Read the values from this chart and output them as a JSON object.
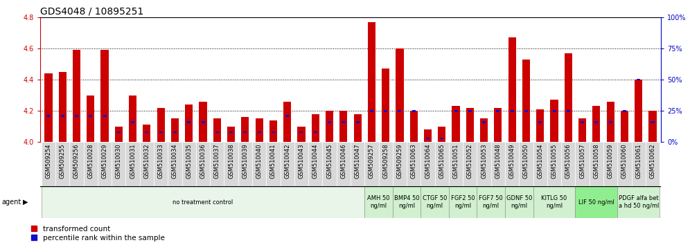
{
  "title": "GDS4048 / 10895251",
  "samples": [
    "GSM509254",
    "GSM509255",
    "GSM509256",
    "GSM510028",
    "GSM510029",
    "GSM510030",
    "GSM510031",
    "GSM510032",
    "GSM510033",
    "GSM510034",
    "GSM510035",
    "GSM510036",
    "GSM510037",
    "GSM510038",
    "GSM510039",
    "GSM510040",
    "GSM510041",
    "GSM510042",
    "GSM510043",
    "GSM510044",
    "GSM510045",
    "GSM510046",
    "GSM510047",
    "GSM509257",
    "GSM509258",
    "GSM509259",
    "GSM510063",
    "GSM510064",
    "GSM510065",
    "GSM510051",
    "GSM510052",
    "GSM510053",
    "GSM510048",
    "GSM510049",
    "GSM510050",
    "GSM510054",
    "GSM510055",
    "GSM510056",
    "GSM510057",
    "GSM510058",
    "GSM510059",
    "GSM510060",
    "GSM510061",
    "GSM510062"
  ],
  "red_values": [
    4.44,
    4.45,
    4.59,
    4.3,
    4.59,
    4.1,
    4.3,
    4.11,
    4.22,
    4.15,
    4.24,
    4.26,
    4.15,
    4.1,
    4.16,
    4.15,
    4.14,
    4.26,
    4.1,
    4.18,
    4.2,
    4.2,
    4.18,
    4.77,
    4.47,
    4.6,
    4.2,
    4.08,
    4.1,
    4.23,
    4.22,
    4.15,
    4.22,
    4.67,
    4.53,
    4.21,
    4.27,
    4.57,
    4.15,
    4.23,
    4.26,
    4.2,
    4.4,
    4.2
  ],
  "blue_values": [
    21,
    21,
    21,
    21,
    21,
    8,
    16,
    8,
    8,
    8,
    16,
    16,
    8,
    8,
    8,
    8,
    8,
    21,
    8,
    8,
    16,
    16,
    16,
    25,
    25,
    25,
    25,
    3,
    3,
    25,
    25,
    16,
    25,
    25,
    25,
    16,
    25,
    25,
    16,
    16,
    16,
    25,
    50,
    16
  ],
  "ylim_left": [
    4.0,
    4.8
  ],
  "ylim_right": [
    0,
    100
  ],
  "yticks_left": [
    4.0,
    4.2,
    4.4,
    4.6,
    4.8
  ],
  "yticks_right": [
    0,
    25,
    50,
    75,
    100
  ],
  "bar_color": "#cc0000",
  "blue_color": "#1010cc",
  "grid_color": "#000000",
  "bg_color": "#ffffff",
  "agent_groups": [
    {
      "label": "no treatment control",
      "start": 0,
      "end": 23,
      "color": "#e8f5e8"
    },
    {
      "label": "AMH 50\nng/ml",
      "start": 23,
      "end": 25,
      "color": "#d0f0d0"
    },
    {
      "label": "BMP4 50\nng/ml",
      "start": 25,
      "end": 27,
      "color": "#d0f0d0"
    },
    {
      "label": "CTGF 50\nng/ml",
      "start": 27,
      "end": 29,
      "color": "#d0f0d0"
    },
    {
      "label": "FGF2 50\nng/ml",
      "start": 29,
      "end": 31,
      "color": "#d0f0d0"
    },
    {
      "label": "FGF7 50\nng/ml",
      "start": 31,
      "end": 33,
      "color": "#d0f0d0"
    },
    {
      "label": "GDNF 50\nng/ml",
      "start": 33,
      "end": 35,
      "color": "#d0f0d0"
    },
    {
      "label": "KITLG 50\nng/ml",
      "start": 35,
      "end": 38,
      "color": "#d0f0d0"
    },
    {
      "label": "LIF 50 ng/ml",
      "start": 38,
      "end": 41,
      "color": "#90ee90"
    },
    {
      "label": "PDGF alfa bet\na hd 50 ng/ml",
      "start": 41,
      "end": 44,
      "color": "#d0f0d0"
    }
  ],
  "left_axis_color": "#cc0000",
  "right_axis_color": "#0000cc",
  "title_fontsize": 10,
  "tick_fontsize": 6.0,
  "agent_label_fontsize": 6,
  "legend_fontsize": 7.5
}
